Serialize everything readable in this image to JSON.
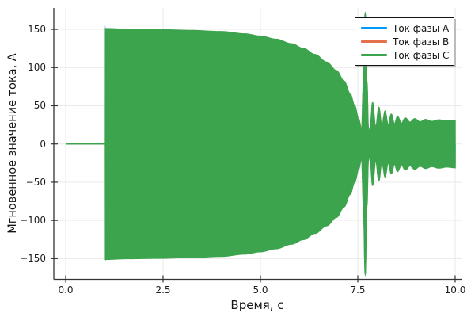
{
  "chart_data": {
    "type": "line",
    "title": "",
    "xlabel": "Время, с",
    "ylabel": "Мгновенное значение тока, А",
    "grid": true,
    "background": "#ffffff",
    "legend_position": "top-right",
    "xlim": [
      -0.3,
      10.16
    ],
    "ylim": [
      -177,
      178
    ],
    "x_ticks": [
      0.0,
      2.5,
      5.0,
      7.5,
      10.0
    ],
    "x_tick_labels": [
      "0.0",
      "2.5",
      "5.0",
      "7.5",
      "10.0"
    ],
    "y_ticks": [
      150,
      100,
      50,
      0,
      -50,
      -100,
      -150
    ],
    "y_tick_labels": [
      "150",
      "100",
      "50",
      "0",
      "−50",
      "−100",
      "−150"
    ],
    "series": [
      {
        "name": "Ток фазы A",
        "color": "#009af9",
        "phase_deg": 0
      },
      {
        "name": "Ток фазы B",
        "color": "#e4714b",
        "phase_deg": -120
      },
      {
        "name": "Ток фазы C",
        "color": "#3da44e",
        "phase_deg": 120
      }
    ],
    "signal": {
      "model": "three-phase sine, amplitude modulated by common envelope",
      "carrier_frequency_hz": 50,
      "duration_s": 10,
      "flat_zero_until_s": 1.0,
      "onset_spike_amp": 156,
      "transient_spike_time_s": 7.69,
      "transient_spike_amp": 170,
      "steady_final_amp": 31,
      "envelope_keypoints_t_amp": [
        [
          0.0,
          0
        ],
        [
          0.999,
          0
        ],
        [
          1.0,
          151
        ],
        [
          1.6,
          150
        ],
        [
          2.4,
          149.5
        ],
        [
          3.2,
          148.5
        ],
        [
          4.0,
          147
        ],
        [
          4.6,
          144
        ],
        [
          5.0,
          141
        ],
        [
          5.4,
          137
        ],
        [
          5.8,
          131
        ],
        [
          6.1,
          125
        ],
        [
          6.4,
          117
        ],
        [
          6.7,
          107
        ],
        [
          6.95,
          96
        ],
        [
          7.15,
          82
        ],
        [
          7.3,
          66
        ],
        [
          7.42,
          50
        ],
        [
          7.52,
          33
        ],
        [
          7.6,
          18
        ],
        [
          7.645,
          80
        ],
        [
          7.69,
          170
        ],
        [
          7.735,
          80
        ],
        [
          7.77,
          22
        ],
        [
          7.81,
          14
        ],
        [
          7.88,
          54
        ],
        [
          7.96,
          20
        ],
        [
          8.04,
          48
        ],
        [
          8.12,
          22
        ],
        [
          8.2,
          43
        ],
        [
          8.28,
          24
        ],
        [
          8.36,
          39
        ],
        [
          8.44,
          26
        ],
        [
          8.52,
          36
        ],
        [
          8.62,
          27
        ],
        [
          8.72,
          34
        ],
        [
          8.84,
          28.5
        ],
        [
          8.96,
          33
        ],
        [
          9.1,
          29
        ],
        [
          9.24,
          32
        ],
        [
          9.4,
          29.5
        ],
        [
          9.58,
          31.5
        ],
        [
          9.78,
          30
        ],
        [
          10.0,
          31
        ]
      ]
    },
    "style_colors": {
      "grid": "#e9e9e9",
      "spine": "#333333",
      "tick_text": "#1c1c1c",
      "legend_border": "#111111"
    }
  }
}
